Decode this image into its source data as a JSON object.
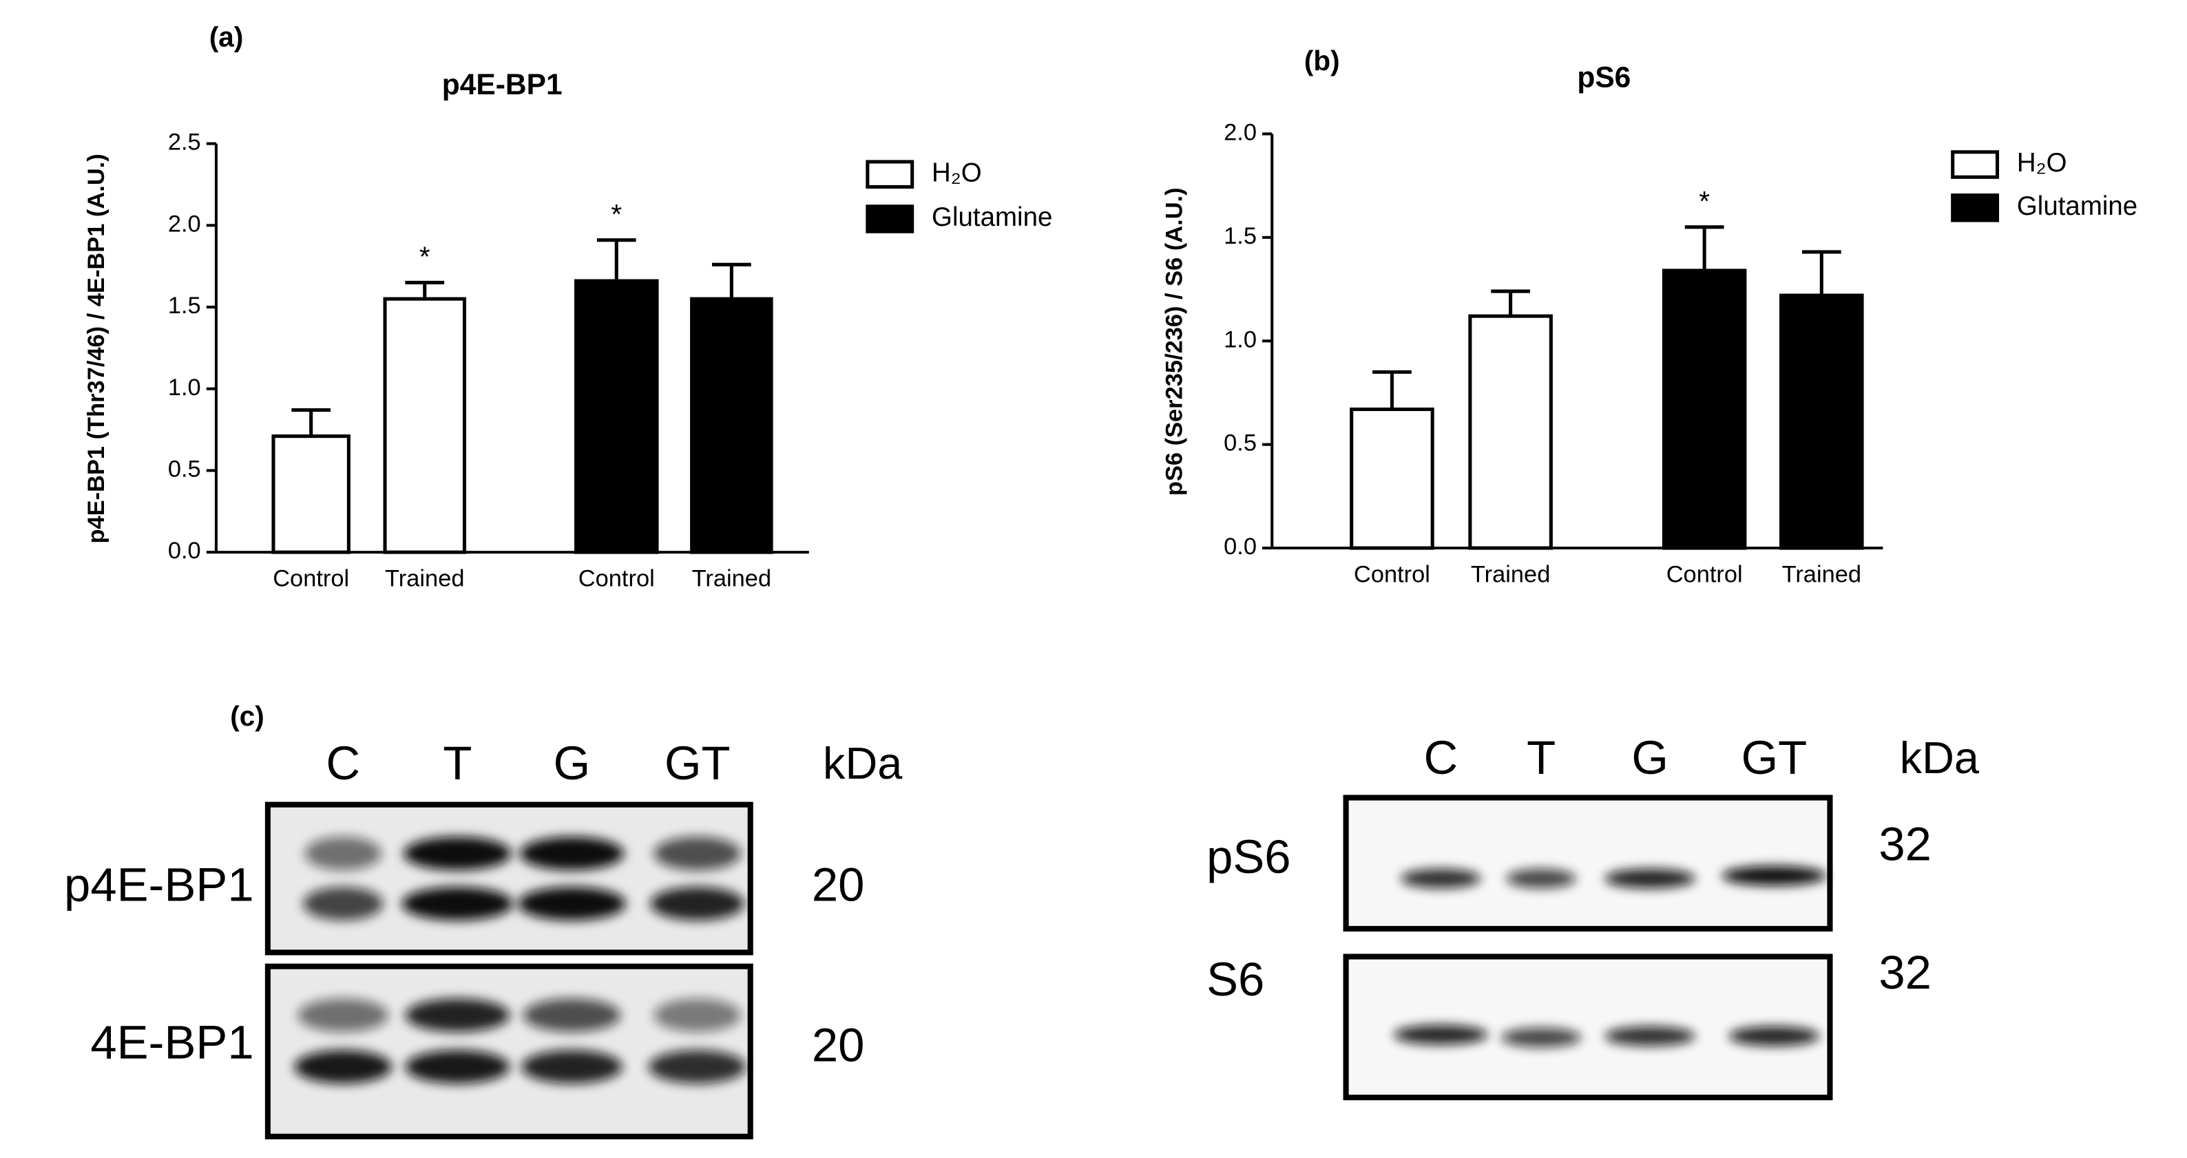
{
  "chart_data": [
    {
      "type": "bar",
      "panel": "(a)",
      "title": "p4E-BP1",
      "ylabel": "p4E-BP1 (Thr37/46) / 4E-BP1 (A.U.)",
      "categories": [
        "Control",
        "Trained",
        "Control",
        "Trained"
      ],
      "series": [
        {
          "name": "H₂O",
          "color": "#ffffff",
          "values": [
            0.71,
            1.55,
            null,
            null
          ],
          "errors": [
            0.16,
            0.1,
            null,
            null
          ]
        },
        {
          "name": "Glutamine",
          "color": "#000000",
          "values": [
            null,
            null,
            1.66,
            1.55
          ],
          "errors": [
            null,
            null,
            0.25,
            0.21
          ]
        }
      ],
      "significance": [
        null,
        "*",
        "*",
        null
      ],
      "ylim": [
        0,
        2.5
      ],
      "yticks": [
        {
          "value": 0,
          "label": "0.0"
        },
        0.5,
        {
          "value": 1,
          "label": "1.0"
        },
        1.5,
        {
          "value": 2,
          "label": "2.0"
        },
        2.5
      ],
      "legend": "right"
    },
    {
      "type": "bar",
      "panel": "(b)",
      "title": "pS6",
      "ylabel": "pS6 (Ser235/236) / S6 (A.U.)",
      "categories": [
        "Control",
        "Trained",
        "Control",
        "Trained"
      ],
      "series": [
        {
          "name": "H₂O",
          "color": "#ffffff",
          "values": [
            0.67,
            1.12,
            null,
            null
          ],
          "errors": [
            0.18,
            0.12,
            null,
            null
          ]
        },
        {
          "name": "Glutamine",
          "color": "#000000",
          "values": [
            null,
            null,
            1.34,
            1.22
          ],
          "errors": [
            null,
            null,
            0.21,
            0.21
          ]
        }
      ],
      "significance": [
        null,
        null,
        "*",
        null
      ],
      "ylim": [
        0,
        2.0
      ],
      "yticks": [
        {
          "value": 0,
          "label": "0.0"
        },
        0.5,
        {
          "value": 1,
          "label": "1.0"
        },
        1.5,
        {
          "value": 2,
          "label": "2.0"
        }
      ],
      "legend": "right"
    }
  ],
  "blots": {
    "panel": "(c)",
    "left": {
      "lanes": [
        "C",
        "T",
        "G",
        "GT"
      ],
      "unit": "kDa",
      "rows": [
        {
          "label": "p4E-BP1",
          "kda": 20
        },
        {
          "label": "4E-BP1",
          "kda": 20
        }
      ]
    },
    "right": {
      "lanes": [
        "C",
        "T",
        "G",
        "GT"
      ],
      "unit": "kDa",
      "rows": [
        {
          "label": "pS6",
          "kda": 32
        },
        {
          "label": "S6",
          "kda": 32
        }
      ]
    }
  }
}
